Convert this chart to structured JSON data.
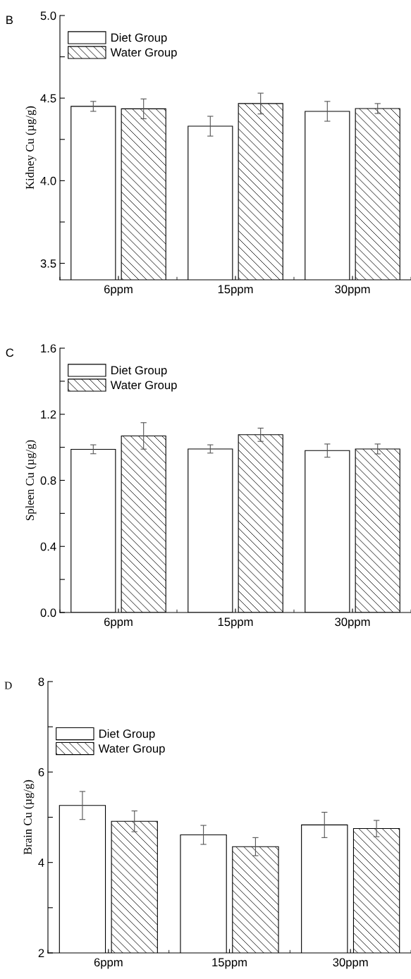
{
  "chart_data": [
    {
      "type": "bar",
      "title": "B",
      "ylabel": "Kidney Cu (µg/g)",
      "categories": [
        "6ppm",
        "15ppm",
        "30ppm"
      ],
      "series": [
        {
          "name": "Diet Group",
          "color": "#ffffff",
          "values": [
            4.45,
            4.33,
            4.42
          ],
          "errors": [
            0.03,
            0.06,
            0.06
          ]
        },
        {
          "name": "Water Group",
          "color": "#000000",
          "values": [
            4.435,
            4.467,
            4.437
          ],
          "errors": [
            0.06,
            0.063,
            0.03
          ]
        }
      ],
      "ylim": [
        3.4,
        5.0
      ],
      "yticks": [
        {
          "value": 3.5,
          "label": "3.5"
        },
        {
          "value": 3.75,
          "label": null
        },
        {
          "value": 4.0,
          "label": "4.0"
        },
        {
          "value": 4.25,
          "label": null
        },
        {
          "value": 4.5,
          "label": "4.5"
        },
        {
          "value": 4.75,
          "label": null
        },
        {
          "value": 5.0,
          "label": "5.0"
        }
      ],
      "legend": "top left",
      "grid": false
    },
    {
      "type": "bar",
      "title": "C",
      "ylabel": "Spleen Cu (µg/g)",
      "categories": [
        "6ppm",
        "15ppm",
        "30ppm"
      ],
      "series": [
        {
          "name": "Diet Group",
          "color": "#ffffff",
          "values": [
            0.988,
            0.99,
            0.98
          ],
          "errors": [
            0.027,
            0.025,
            0.04
          ]
        },
        {
          "name": "Water Group",
          "color": "#000000",
          "values": [
            1.069,
            1.076,
            0.99
          ],
          "errors": [
            0.08,
            0.04,
            0.03
          ]
        }
      ],
      "ylim": [
        0.0,
        1.6
      ],
      "yticks": [
        {
          "value": 0.0,
          "label": "0.0"
        },
        {
          "value": 0.2,
          "label": null
        },
        {
          "value": 0.4,
          "label": "0.4"
        },
        {
          "value": 0.6,
          "label": null
        },
        {
          "value": 0.8,
          "label": "0.8"
        },
        {
          "value": 1.0,
          "label": null
        },
        {
          "value": 1.2,
          "label": "1.2"
        },
        {
          "value": 1.4,
          "label": null
        },
        {
          "value": 1.6,
          "label": "1.6"
        }
      ],
      "legend": "top left",
      "grid": false
    },
    {
      "type": "bar",
      "title": "D",
      "ylabel": "Brain Cu (µg/g)",
      "categories": [
        "6ppm",
        "15ppm",
        "30ppm"
      ],
      "series": [
        {
          "name": "Diet Group",
          "color": "#ffffff",
          "values": [
            5.26,
            4.61,
            4.83
          ],
          "errors": [
            0.31,
            0.21,
            0.28
          ]
        },
        {
          "name": "Water Group",
          "color": "#000000",
          "values": [
            4.91,
            4.35,
            4.75
          ],
          "errors": [
            0.23,
            0.2,
            0.18
          ]
        }
      ],
      "ylim": [
        2,
        8
      ],
      "yticks": [
        2,
        {
          "value": 3,
          "label": null
        },
        4,
        {
          "value": 5,
          "label": null
        },
        6,
        {
          "value": 7,
          "label": null
        },
        8
      ],
      "legend": "upper left",
      "grid": false
    }
  ]
}
